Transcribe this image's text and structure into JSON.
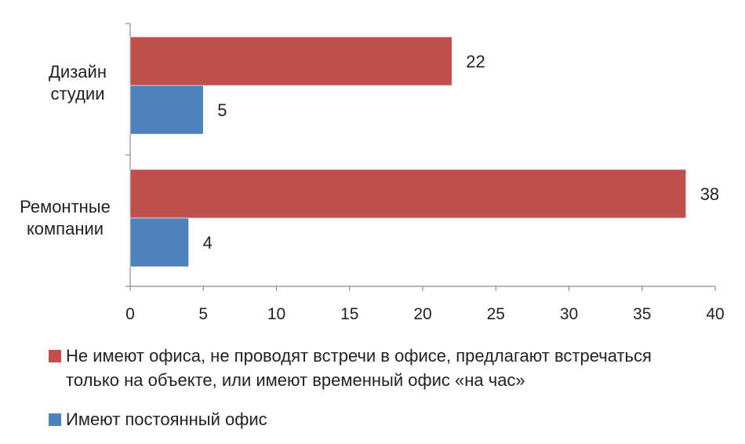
{
  "chart_data": {
    "type": "bar",
    "orientation": "horizontal",
    "categories": [
      "Дизайн студии",
      "Ремонтные компании"
    ],
    "series": [
      {
        "name": "Не имеют офиса, не проводят встречи в офисе, предлагают встречаться только на объекте, или имеют временный офис «на час»",
        "color": "#c0504d",
        "values": [
          22,
          38
        ]
      },
      {
        "name": "Имеют постоянный офис",
        "color": "#4f81bd",
        "values": [
          5,
          4
        ]
      }
    ],
    "xlim": [
      0,
      40
    ],
    "xticks": [
      "0",
      "5",
      "10",
      "15",
      "20",
      "25",
      "30",
      "35",
      "40"
    ],
    "grid": false,
    "legend_position": "bottom",
    "data_labels": true
  }
}
